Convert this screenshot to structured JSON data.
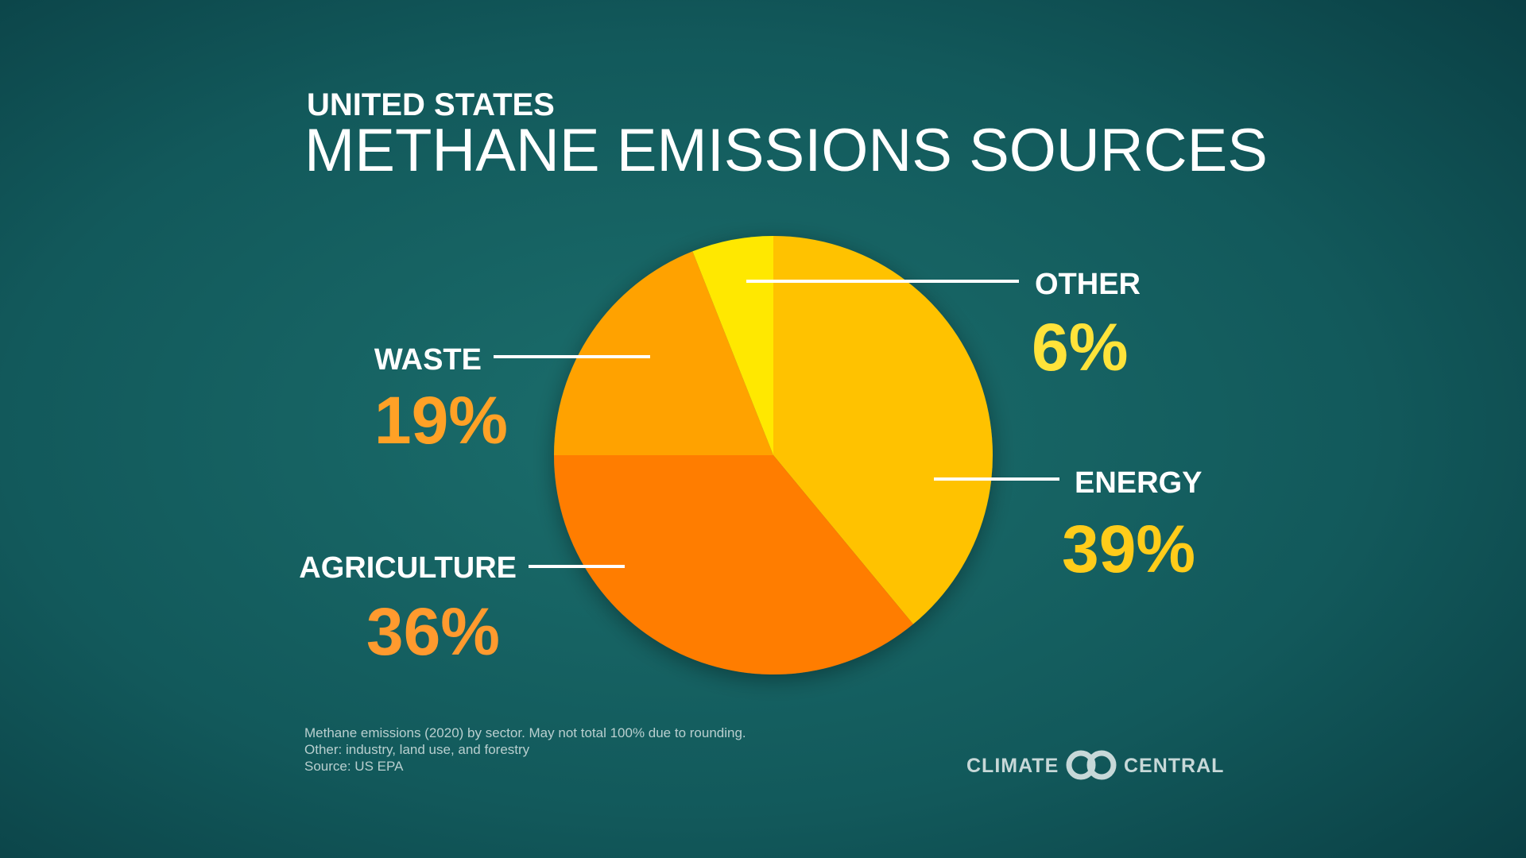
{
  "chart_data": {
    "type": "pie",
    "subtitle": "UNITED STATES",
    "title": "METHANE EMISSIONS SOURCES",
    "categories": [
      "ENERGY",
      "AGRICULTURE",
      "WASTE",
      "OTHER"
    ],
    "values": [
      39,
      36,
      19,
      6
    ],
    "value_labels": [
      "39%",
      "36%",
      "19%",
      "6%"
    ],
    "colors": [
      "#ffc200",
      "#ff7d00",
      "#ffa200",
      "#ffe800"
    ],
    "label_colors": [
      "#ffcc1a",
      "#ff9a2e",
      "#ffa126",
      "#ffe33a"
    ],
    "notes": [
      "Methane emissions (2020) by sector. May not total 100% due to rounding.",
      "Other: industry, land use, and forestry",
      "Source: US EPA"
    ]
  },
  "branding": {
    "left": "CLIMATE",
    "right": "CENTRAL"
  }
}
